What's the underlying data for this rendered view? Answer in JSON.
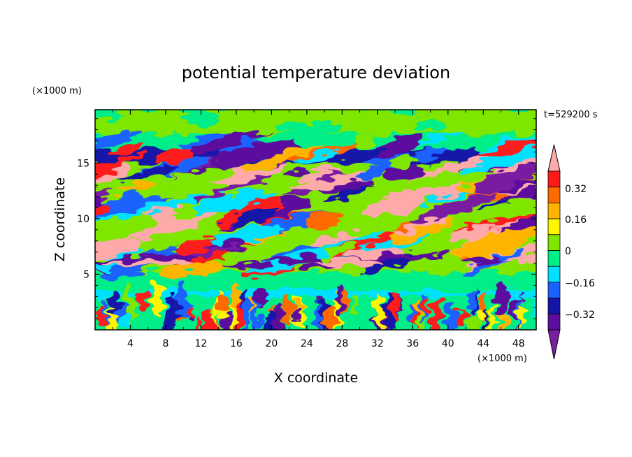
{
  "chart_data": {
    "type": "heatmap",
    "title": "potential temperature deviation",
    "xlabel": "X coordinate",
    "ylabel": "Z coordinate",
    "x_unit": "(×1000 m)",
    "y_unit": "(×1000 m)",
    "time_label": "t=529200 s",
    "xlim": [
      0,
      50
    ],
    "ylim": [
      0,
      19.8
    ],
    "xticks": [
      "4",
      "8",
      "12",
      "16",
      "20",
      "24",
      "28",
      "32",
      "36",
      "40",
      "44",
      "48"
    ],
    "yticks": [
      "5",
      "10",
      "15"
    ],
    "colorbar": {
      "levels": [
        -0.48,
        -0.4,
        -0.32,
        -0.24,
        -0.16,
        -0.08,
        0,
        0.08,
        0.16,
        0.24,
        0.32,
        0.4
      ],
      "labels": [
        "0.32",
        "0.16",
        "0",
        "−0.16",
        "−0.32"
      ],
      "colors": [
        "#7a1fa2",
        "#5c0f9e",
        "#1414a8",
        "#1a62ff",
        "#00e0ff",
        "#00ee88",
        "#7fe600",
        "#fff500",
        "#ffb400",
        "#ff6a00",
        "#ff1a1a",
        "#ffaaaa"
      ]
    }
  }
}
